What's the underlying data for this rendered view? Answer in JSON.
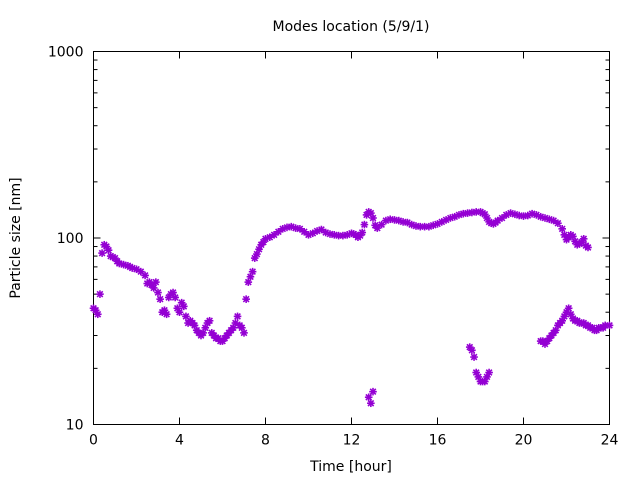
{
  "chart_data": {
    "type": "scatter",
    "title": "Modes location (5/9/1)",
    "xlabel": "Time [hour]",
    "ylabel": "Particle size [nm]",
    "xlim": [
      0,
      24
    ],
    "ylim": [
      10,
      1000
    ],
    "yscale": "log",
    "xticks": [
      0,
      4,
      8,
      12,
      16,
      20,
      24
    ],
    "xtick_labels": [
      "0",
      "4",
      "8",
      "12",
      "16",
      "20",
      "24"
    ],
    "yticks": [
      10,
      100,
      1000
    ],
    "ytick_labels": [
      "10",
      "100",
      "1000"
    ],
    "grid": false,
    "legend": "none",
    "marker_color": "#9400d3",
    "series": [
      {
        "points": [
          [
            0.0,
            42
          ],
          [
            0.1,
            41
          ],
          [
            0.2,
            39
          ],
          [
            0.3,
            50
          ],
          [
            0.4,
            83
          ],
          [
            0.5,
            92
          ],
          [
            0.6,
            90
          ],
          [
            0.7,
            86
          ],
          [
            0.8,
            80
          ],
          [
            0.9,
            79
          ],
          [
            1.0,
            78
          ],
          [
            1.1,
            75
          ],
          [
            1.2,
            73
          ],
          [
            1.4,
            72
          ],
          [
            1.6,
            71
          ],
          [
            1.7,
            70
          ],
          [
            1.8,
            69
          ],
          [
            2.0,
            68
          ],
          [
            2.2,
            66
          ],
          [
            2.4,
            63
          ],
          [
            2.5,
            57
          ],
          [
            2.6,
            58
          ],
          [
            2.7,
            56
          ],
          [
            2.8,
            54
          ],
          [
            2.9,
            58
          ],
          [
            3.0,
            51
          ],
          [
            3.1,
            47
          ],
          [
            3.2,
            40
          ],
          [
            3.3,
            41
          ],
          [
            3.4,
            39
          ],
          [
            3.5,
            48
          ],
          [
            3.6,
            50
          ],
          [
            3.7,
            51
          ],
          [
            3.8,
            48
          ],
          [
            3.9,
            42
          ],
          [
            4.0,
            40
          ],
          [
            4.1,
            45
          ],
          [
            4.2,
            43
          ],
          [
            4.3,
            38
          ],
          [
            4.4,
            35
          ],
          [
            4.5,
            36
          ],
          [
            4.6,
            35
          ],
          [
            4.7,
            34
          ],
          [
            4.8,
            32
          ],
          [
            4.9,
            31
          ],
          [
            5.0,
            30
          ],
          [
            5.1,
            31
          ],
          [
            5.2,
            33
          ],
          [
            5.3,
            35
          ],
          [
            5.4,
            36
          ],
          [
            5.5,
            31
          ],
          [
            5.6,
            30
          ],
          [
            5.7,
            29
          ],
          [
            5.8,
            29
          ],
          [
            5.9,
            28
          ],
          [
            6.0,
            28
          ],
          [
            6.1,
            29
          ],
          [
            6.2,
            30
          ],
          [
            6.3,
            31
          ],
          [
            6.4,
            32
          ],
          [
            6.5,
            33
          ],
          [
            6.6,
            35
          ],
          [
            6.7,
            38
          ],
          [
            6.8,
            34
          ],
          [
            6.9,
            33
          ],
          [
            7.0,
            31
          ],
          [
            7.1,
            47
          ],
          [
            7.2,
            58
          ],
          [
            7.3,
            62
          ],
          [
            7.4,
            66
          ],
          [
            7.5,
            78
          ],
          [
            7.6,
            82
          ],
          [
            7.7,
            87
          ],
          [
            7.8,
            92
          ],
          [
            7.9,
            95
          ],
          [
            8.0,
            99
          ],
          [
            8.2,
            101
          ],
          [
            8.4,
            104
          ],
          [
            8.6,
            108
          ],
          [
            8.8,
            112
          ],
          [
            9.0,
            114
          ],
          [
            9.2,
            115
          ],
          [
            9.4,
            113
          ],
          [
            9.6,
            112
          ],
          [
            9.8,
            108
          ],
          [
            10.0,
            104
          ],
          [
            10.2,
            106
          ],
          [
            10.4,
            109
          ],
          [
            10.6,
            111
          ],
          [
            10.8,
            107
          ],
          [
            11.0,
            105
          ],
          [
            11.2,
            104
          ],
          [
            11.4,
            103
          ],
          [
            11.6,
            103
          ],
          [
            11.8,
            104
          ],
          [
            12.0,
            106
          ],
          [
            12.1,
            105
          ],
          [
            12.2,
            104
          ],
          [
            12.3,
            101
          ],
          [
            12.4,
            103
          ],
          [
            12.5,
            107
          ],
          [
            12.6,
            118
          ],
          [
            12.7,
            133
          ],
          [
            12.8,
            138
          ],
          [
            12.9,
            136
          ],
          [
            13.0,
            128
          ],
          [
            13.1,
            117
          ],
          [
            13.2,
            113
          ],
          [
            13.4,
            118
          ],
          [
            13.6,
            124
          ],
          [
            13.8,
            126
          ],
          [
            14.0,
            125
          ],
          [
            14.2,
            124
          ],
          [
            14.4,
            122
          ],
          [
            14.6,
            121
          ],
          [
            14.8,
            118
          ],
          [
            15.0,
            116
          ],
          [
            15.2,
            115
          ],
          [
            15.4,
            115
          ],
          [
            15.6,
            115
          ],
          [
            15.8,
            117
          ],
          [
            16.0,
            119
          ],
          [
            16.2,
            122
          ],
          [
            16.4,
            125
          ],
          [
            16.6,
            128
          ],
          [
            16.8,
            130
          ],
          [
            17.0,
            133
          ],
          [
            17.2,
            135
          ],
          [
            17.4,
            136
          ],
          [
            17.6,
            137
          ],
          [
            17.8,
            138
          ],
          [
            18.0,
            138
          ],
          [
            18.1,
            136
          ],
          [
            18.2,
            134
          ],
          [
            18.3,
            128
          ],
          [
            18.4,
            122
          ],
          [
            18.5,
            120
          ],
          [
            18.6,
            119
          ],
          [
            18.7,
            121
          ],
          [
            18.8,
            124
          ],
          [
            19.0,
            128
          ],
          [
            19.2,
            133
          ],
          [
            19.4,
            136
          ],
          [
            19.6,
            134
          ],
          [
            19.8,
            132
          ],
          [
            20.0,
            131
          ],
          [
            20.2,
            132
          ],
          [
            20.4,
            135
          ],
          [
            20.6,
            133
          ],
          [
            20.8,
            130
          ],
          [
            21.0,
            128
          ],
          [
            21.2,
            126
          ],
          [
            21.4,
            124
          ],
          [
            21.6,
            120
          ],
          [
            21.8,
            112
          ],
          [
            21.9,
            104
          ],
          [
            22.0,
            98
          ],
          [
            22.1,
            101
          ],
          [
            22.2,
            104
          ],
          [
            22.3,
            102
          ],
          [
            22.4,
            96
          ],
          [
            22.5,
            92
          ],
          [
            22.6,
            93
          ],
          [
            22.7,
            95
          ],
          [
            22.8,
            99
          ],
          [
            22.9,
            91
          ],
          [
            23.0,
            89
          ]
        ]
      },
      {
        "points": [
          [
            12.8,
            14
          ],
          [
            12.9,
            13
          ],
          [
            13.0,
            15
          ],
          [
            17.5,
            26
          ],
          [
            17.6,
            25
          ],
          [
            17.7,
            23
          ],
          [
            17.8,
            19
          ],
          [
            17.9,
            18
          ],
          [
            18.0,
            17
          ],
          [
            18.1,
            17
          ],
          [
            18.2,
            17
          ],
          [
            18.3,
            18
          ],
          [
            18.4,
            19
          ],
          [
            20.8,
            28
          ],
          [
            20.9,
            28
          ],
          [
            21.0,
            27
          ],
          [
            21.1,
            28
          ],
          [
            21.2,
            29
          ],
          [
            21.3,
            30
          ],
          [
            21.4,
            31
          ],
          [
            21.5,
            32
          ],
          [
            21.6,
            34
          ],
          [
            21.7,
            35
          ],
          [
            21.8,
            36
          ],
          [
            21.9,
            38
          ],
          [
            22.0,
            40
          ],
          [
            22.1,
            42
          ],
          [
            22.2,
            39
          ],
          [
            22.3,
            37
          ],
          [
            22.4,
            36
          ],
          [
            22.5,
            36
          ],
          [
            22.6,
            35
          ],
          [
            22.7,
            35
          ],
          [
            22.8,
            35
          ],
          [
            22.9,
            34
          ],
          [
            23.0,
            34
          ],
          [
            23.1,
            33
          ],
          [
            23.2,
            33
          ],
          [
            23.3,
            32
          ],
          [
            23.4,
            32
          ],
          [
            23.5,
            33
          ],
          [
            23.6,
            33
          ],
          [
            23.7,
            33
          ],
          [
            23.8,
            34
          ],
          [
            24.0,
            34
          ]
        ]
      }
    ]
  }
}
